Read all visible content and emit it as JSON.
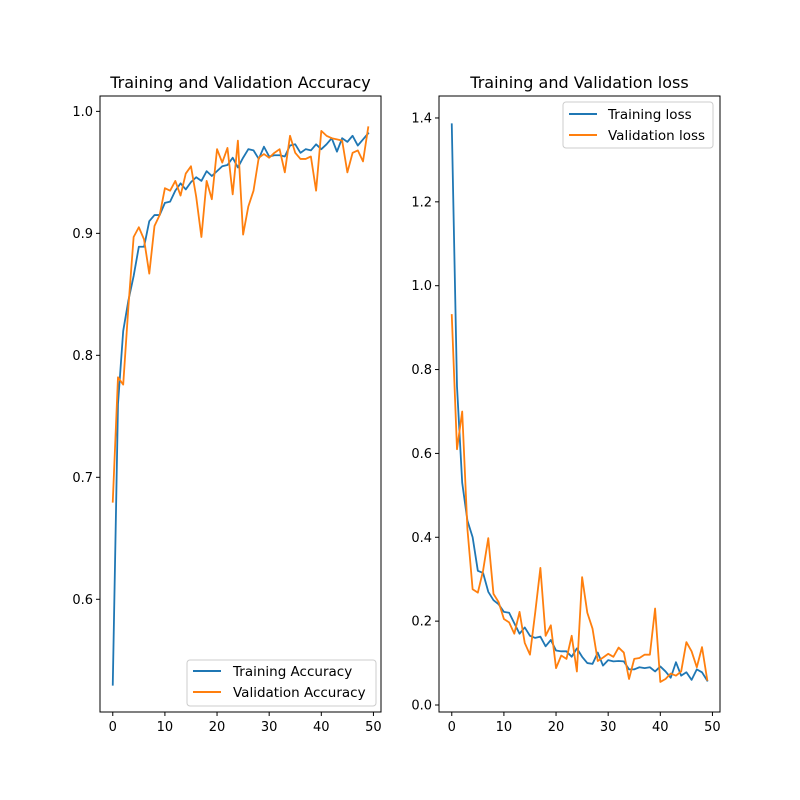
{
  "chart_data": [
    {
      "type": "line",
      "title": "Training and Validation Accuracy",
      "xlabel": "",
      "ylabel": "",
      "xlim": [
        -2.45,
        51.45
      ],
      "ylim": [
        0.5076,
        1.0126
      ],
      "xticks": [
        0,
        10,
        20,
        30,
        40,
        50
      ],
      "xtick_labels": [
        "0",
        "10",
        "20",
        "30",
        "40",
        "50"
      ],
      "yticks": [
        0.6,
        0.7,
        0.8,
        0.9,
        1.0
      ],
      "ytick_labels": [
        "0.6",
        "0.7",
        "0.8",
        "0.9",
        "1.0"
      ],
      "grid": false,
      "legend_position": "lower-right",
      "x": [
        0,
        1,
        2,
        3,
        4,
        5,
        6,
        7,
        8,
        9,
        10,
        11,
        12,
        13,
        14,
        15,
        16,
        17,
        18,
        19,
        20,
        21,
        22,
        23,
        24,
        25,
        26,
        27,
        28,
        29,
        30,
        31,
        32,
        33,
        34,
        35,
        36,
        37,
        38,
        39,
        40,
        41,
        42,
        43,
        44,
        45,
        46,
        47,
        48,
        49
      ],
      "series": [
        {
          "name": "Training Accuracy",
          "color": "#1f77b4",
          "values": [
            0.53,
            0.76,
            0.82,
            0.845,
            0.865,
            0.889,
            0.889,
            0.91,
            0.915,
            0.915,
            0.925,
            0.926,
            0.935,
            0.941,
            0.936,
            0.942,
            0.946,
            0.943,
            0.951,
            0.947,
            0.951,
            0.955,
            0.956,
            0.962,
            0.954,
            0.962,
            0.969,
            0.968,
            0.961,
            0.971,
            0.963,
            0.964,
            0.964,
            0.963,
            0.972,
            0.973,
            0.966,
            0.969,
            0.968,
            0.973,
            0.969,
            0.973,
            0.978,
            0.967,
            0.978,
            0.975,
            0.98,
            0.972,
            0.977,
            0.982
          ]
        },
        {
          "name": "Validation Accuracy",
          "color": "#ff7f0e",
          "values": [
            0.68,
            0.782,
            0.776,
            0.84,
            0.897,
            0.905,
            0.895,
            0.867,
            0.906,
            0.915,
            0.937,
            0.935,
            0.943,
            0.931,
            0.949,
            0.955,
            0.93,
            0.897,
            0.943,
            0.928,
            0.969,
            0.958,
            0.97,
            0.932,
            0.976,
            0.899,
            0.922,
            0.935,
            0.962,
            0.965,
            0.962,
            0.966,
            0.969,
            0.95,
            0.98,
            0.966,
            0.961,
            0.961,
            0.963,
            0.935,
            0.984,
            0.98,
            0.978,
            0.977,
            0.976,
            0.95,
            0.966,
            0.968,
            0.959,
            0.987
          ]
        }
      ]
    },
    {
      "type": "line",
      "title": "Training and Validation loss",
      "xlabel": "",
      "ylabel": "",
      "xlim": [
        -2.45,
        51.45
      ],
      "ylim": [
        -0.0167,
        1.4524
      ],
      "xticks": [
        0,
        10,
        20,
        30,
        40,
        50
      ],
      "xtick_labels": [
        "0",
        "10",
        "20",
        "30",
        "40",
        "50"
      ],
      "yticks": [
        0.0,
        0.2,
        0.4,
        0.6,
        0.8,
        1.0,
        1.2,
        1.4
      ],
      "ytick_labels": [
        "0.0",
        "0.2",
        "0.4",
        "0.6",
        "0.8",
        "1.0",
        "1.2",
        "1.4"
      ],
      "grid": false,
      "legend_position": "upper-right",
      "x": [
        0,
        1,
        2,
        3,
        4,
        5,
        6,
        7,
        8,
        9,
        10,
        11,
        12,
        13,
        14,
        15,
        16,
        17,
        18,
        19,
        20,
        21,
        22,
        23,
        24,
        25,
        26,
        27,
        28,
        29,
        30,
        31,
        32,
        33,
        34,
        35,
        36,
        37,
        38,
        39,
        40,
        41,
        42,
        43,
        44,
        45,
        46,
        47,
        48,
        49
      ],
      "series": [
        {
          "name": "Training loss",
          "color": "#1f77b4",
          "values": [
            1.385,
            0.76,
            0.53,
            0.44,
            0.4,
            0.32,
            0.315,
            0.27,
            0.25,
            0.24,
            0.222,
            0.22,
            0.195,
            0.17,
            0.185,
            0.165,
            0.16,
            0.163,
            0.14,
            0.155,
            0.13,
            0.128,
            0.128,
            0.115,
            0.135,
            0.115,
            0.1,
            0.098,
            0.125,
            0.094,
            0.107,
            0.104,
            0.105,
            0.104,
            0.085,
            0.085,
            0.09,
            0.088,
            0.09,
            0.08,
            0.092,
            0.08,
            0.065,
            0.102,
            0.07,
            0.078,
            0.06,
            0.085,
            0.078,
            0.058
          ]
        },
        {
          "name": "Validation loss",
          "color": "#ff7f0e",
          "values": [
            0.93,
            0.61,
            0.7,
            0.42,
            0.276,
            0.268,
            0.32,
            0.398,
            0.265,
            0.245,
            0.205,
            0.197,
            0.17,
            0.222,
            0.148,
            0.12,
            0.22,
            0.327,
            0.165,
            0.19,
            0.088,
            0.118,
            0.11,
            0.165,
            0.08,
            0.305,
            0.22,
            0.182,
            0.105,
            0.113,
            0.122,
            0.115,
            0.137,
            0.125,
            0.062,
            0.11,
            0.112,
            0.12,
            0.12,
            0.23,
            0.055,
            0.062,
            0.075,
            0.07,
            0.08,
            0.15,
            0.128,
            0.09,
            0.138,
            0.06
          ]
        }
      ]
    }
  ]
}
